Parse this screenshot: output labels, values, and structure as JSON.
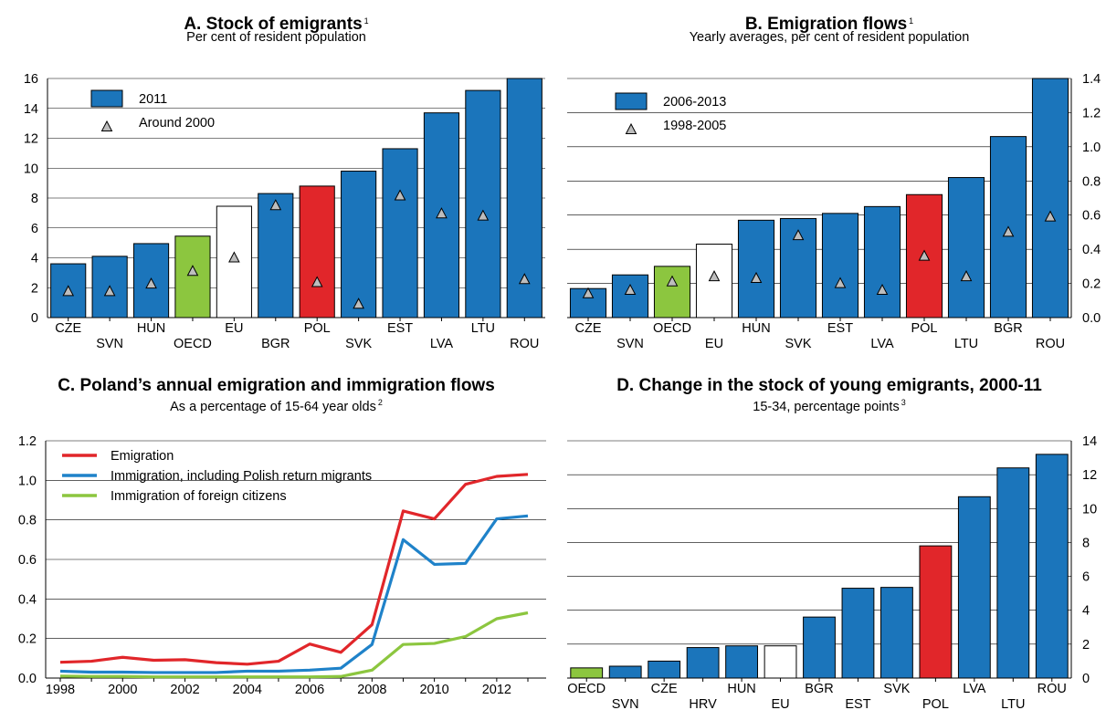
{
  "colors": {
    "blue": "#1b75bb",
    "red": "#e1262a",
    "green": "#8cc63f",
    "white": "#ffffff",
    "grid": "#000000",
    "line_blue": "#1f82c9"
  },
  "chart_data": [
    {
      "id": "A",
      "type": "bar",
      "title": "A. Stock of emigrants",
      "title_sup": "1",
      "subtitle": "Per cent of resident population",
      "categories": [
        "CZE",
        "SVN",
        "HUN",
        "OECD",
        "EU",
        "BGR",
        "POL",
        "SVK",
        "EST",
        "LVA",
        "LTU",
        "ROU"
      ],
      "series": [
        {
          "name": "2011",
          "values": [
            3.6,
            4.1,
            4.95,
            5.45,
            7.45,
            8.3,
            8.8,
            9.8,
            11.3,
            13.7,
            15.2,
            16.0
          ]
        },
        {
          "name": "Around 2000",
          "marker": "triangle",
          "values": [
            1.75,
            1.75,
            2.25,
            3.1,
            4.0,
            7.5,
            2.35,
            0.9,
            8.15,
            6.95,
            6.8,
            2.55
          ]
        }
      ],
      "bar_colors": [
        "blue",
        "blue",
        "blue",
        "green",
        "white",
        "blue",
        "red",
        "blue",
        "blue",
        "blue",
        "blue",
        "blue"
      ],
      "ylim": [
        0,
        16
      ],
      "yticks": [
        "0",
        "2",
        "4",
        "6",
        "8",
        "10",
        "12",
        "14",
        "16"
      ],
      "axis_side": "left",
      "legend": "top-left"
    },
    {
      "id": "B",
      "type": "bar",
      "title": "B. Emigration flows",
      "title_sup": "1",
      "subtitle": "Yearly averages, per cent of resident population",
      "categories": [
        "CZE",
        "SVN",
        "OECD",
        "EU",
        "HUN",
        "SVK",
        "EST",
        "LVA",
        "POL",
        "LTU",
        "BGR",
        "ROU"
      ],
      "series": [
        {
          "name": "2006-2013",
          "values": [
            0.17,
            0.25,
            0.3,
            0.43,
            0.57,
            0.58,
            0.61,
            0.65,
            0.72,
            0.82,
            1.06,
            1.4
          ]
        },
        {
          "name": "1998-2005",
          "marker": "triangle",
          "values": [
            0.14,
            0.16,
            0.21,
            0.24,
            0.23,
            0.48,
            0.2,
            0.16,
            0.36,
            0.24,
            0.5,
            0.59
          ]
        }
      ],
      "bar_colors": [
        "blue",
        "blue",
        "green",
        "white",
        "blue",
        "blue",
        "blue",
        "blue",
        "red",
        "blue",
        "blue",
        "blue"
      ],
      "ylim": [
        0,
        1.4
      ],
      "yticks": [
        "0.0",
        "0.2",
        "0.4",
        "0.6",
        "0.8",
        "1.0",
        "1.2",
        "1.4"
      ],
      "axis_side": "right",
      "legend": "top-left"
    },
    {
      "id": "C",
      "type": "line",
      "title": "C. Poland’s annual emigration and immigration flows",
      "subtitle": "As a percentage of 15-64 year olds",
      "subtitle_sup": "2",
      "x": [
        1998,
        1999,
        2000,
        2001,
        2002,
        2003,
        2004,
        2005,
        2006,
        2007,
        2008,
        2009,
        2010,
        2011,
        2012,
        2013
      ],
      "xticks": [
        "1998",
        "2000",
        "2002",
        "2004",
        "2006",
        "2008",
        "2010",
        "2012"
      ],
      "series": [
        {
          "name": "Emigration",
          "color": "red",
          "values": [
            0.08,
            0.085,
            0.105,
            0.09,
            0.093,
            0.078,
            0.07,
            0.085,
            0.172,
            0.13,
            0.27,
            0.845,
            0.805,
            0.98,
            1.02,
            1.03
          ]
        },
        {
          "name": "Immigration, including Polish return migrants",
          "color": "line_blue",
          "values": [
            0.035,
            0.03,
            0.03,
            0.028,
            0.028,
            0.028,
            0.035,
            0.035,
            0.04,
            0.05,
            0.17,
            0.7,
            0.575,
            0.58,
            0.805,
            0.82
          ]
        },
        {
          "name": "Immigration of foreign citizens",
          "color": "green",
          "values": [
            0.01,
            0.008,
            0.008,
            0.006,
            0.006,
            0.006,
            0.006,
            0.006,
            0.006,
            0.008,
            0.04,
            0.17,
            0.175,
            0.21,
            0.3,
            0.33
          ]
        }
      ],
      "ylim": [
        0,
        1.2
      ],
      "yticks": [
        "0.0",
        "0.2",
        "0.4",
        "0.6",
        "0.8",
        "1.0",
        "1.2"
      ],
      "axis_side": "left",
      "legend": "top-left"
    },
    {
      "id": "D",
      "type": "bar",
      "title": "D. Change in the stock of young emigrants, 2000-11",
      "subtitle": "15-34, percentage points",
      "subtitle_sup": "3",
      "categories": [
        "OECD",
        "SVN",
        "CZE",
        "HRV",
        "HUN",
        "EU",
        "BGR",
        "EST",
        "SVK",
        "POL",
        "LVA",
        "LTU",
        "ROU"
      ],
      "series": [
        {
          "name": "",
          "values": [
            0.6,
            0.7,
            1.0,
            1.8,
            1.9,
            1.9,
            3.6,
            5.3,
            5.35,
            7.8,
            10.7,
            12.4,
            13.2
          ]
        }
      ],
      "bar_colors": [
        "green",
        "blue",
        "blue",
        "blue",
        "blue",
        "white",
        "blue",
        "blue",
        "blue",
        "red",
        "blue",
        "blue",
        "blue"
      ],
      "ylim": [
        0,
        14
      ],
      "yticks": [
        "0",
        "2",
        "4",
        "6",
        "8",
        "10",
        "12",
        "14"
      ],
      "axis_side": "right",
      "legend": "none"
    }
  ]
}
